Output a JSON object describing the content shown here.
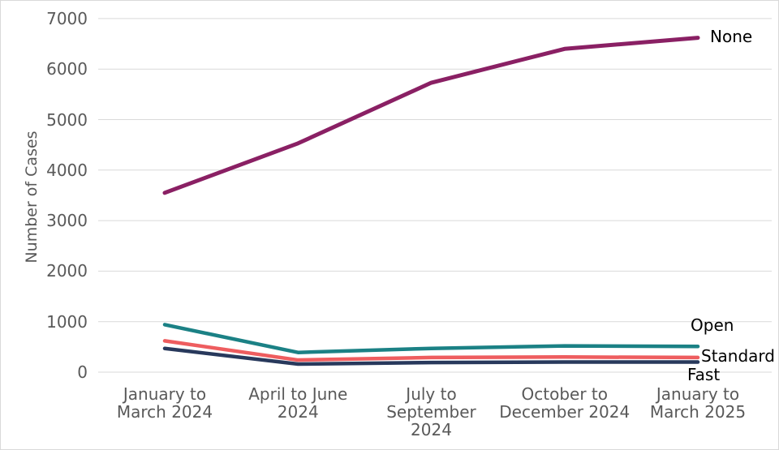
{
  "chart_data": {
    "type": "line",
    "title": "",
    "xlabel": "",
    "ylabel": "Number of Cases",
    "ylim": [
      0,
      7000
    ],
    "ytick_step": 1000,
    "yticks": [
      0,
      1000,
      2000,
      3000,
      4000,
      5000,
      6000,
      7000
    ],
    "grid": "horizontal gridlines only, light gray",
    "legend_position": "direct labels at right end of each line",
    "categories": [
      "January to\nMarch 2024",
      "April to June\n2024",
      "July to\nSeptember\n2024",
      "October to\nDecember 2024",
      "January to\nMarch 2025"
    ],
    "series": [
      {
        "name": "None",
        "color": "#8A2064",
        "values": [
          3550,
          4530,
          5730,
          6400,
          6620
        ]
      },
      {
        "name": "Open",
        "color": "#1B8185",
        "values": [
          940,
          390,
          470,
          520,
          510
        ]
      },
      {
        "name": "Standard",
        "color": "#EE5D5F",
        "values": [
          620,
          240,
          290,
          300,
          290
        ]
      },
      {
        "name": "Fast",
        "color": "#28395C",
        "values": [
          470,
          160,
          190,
          200,
          200
        ]
      }
    ]
  },
  "colors": {
    "background": "#FFFFFF",
    "border": "#D9D9D9",
    "gridline": "#D9D9D9",
    "axis_text": "#595959",
    "series_label_text": "#000000"
  }
}
